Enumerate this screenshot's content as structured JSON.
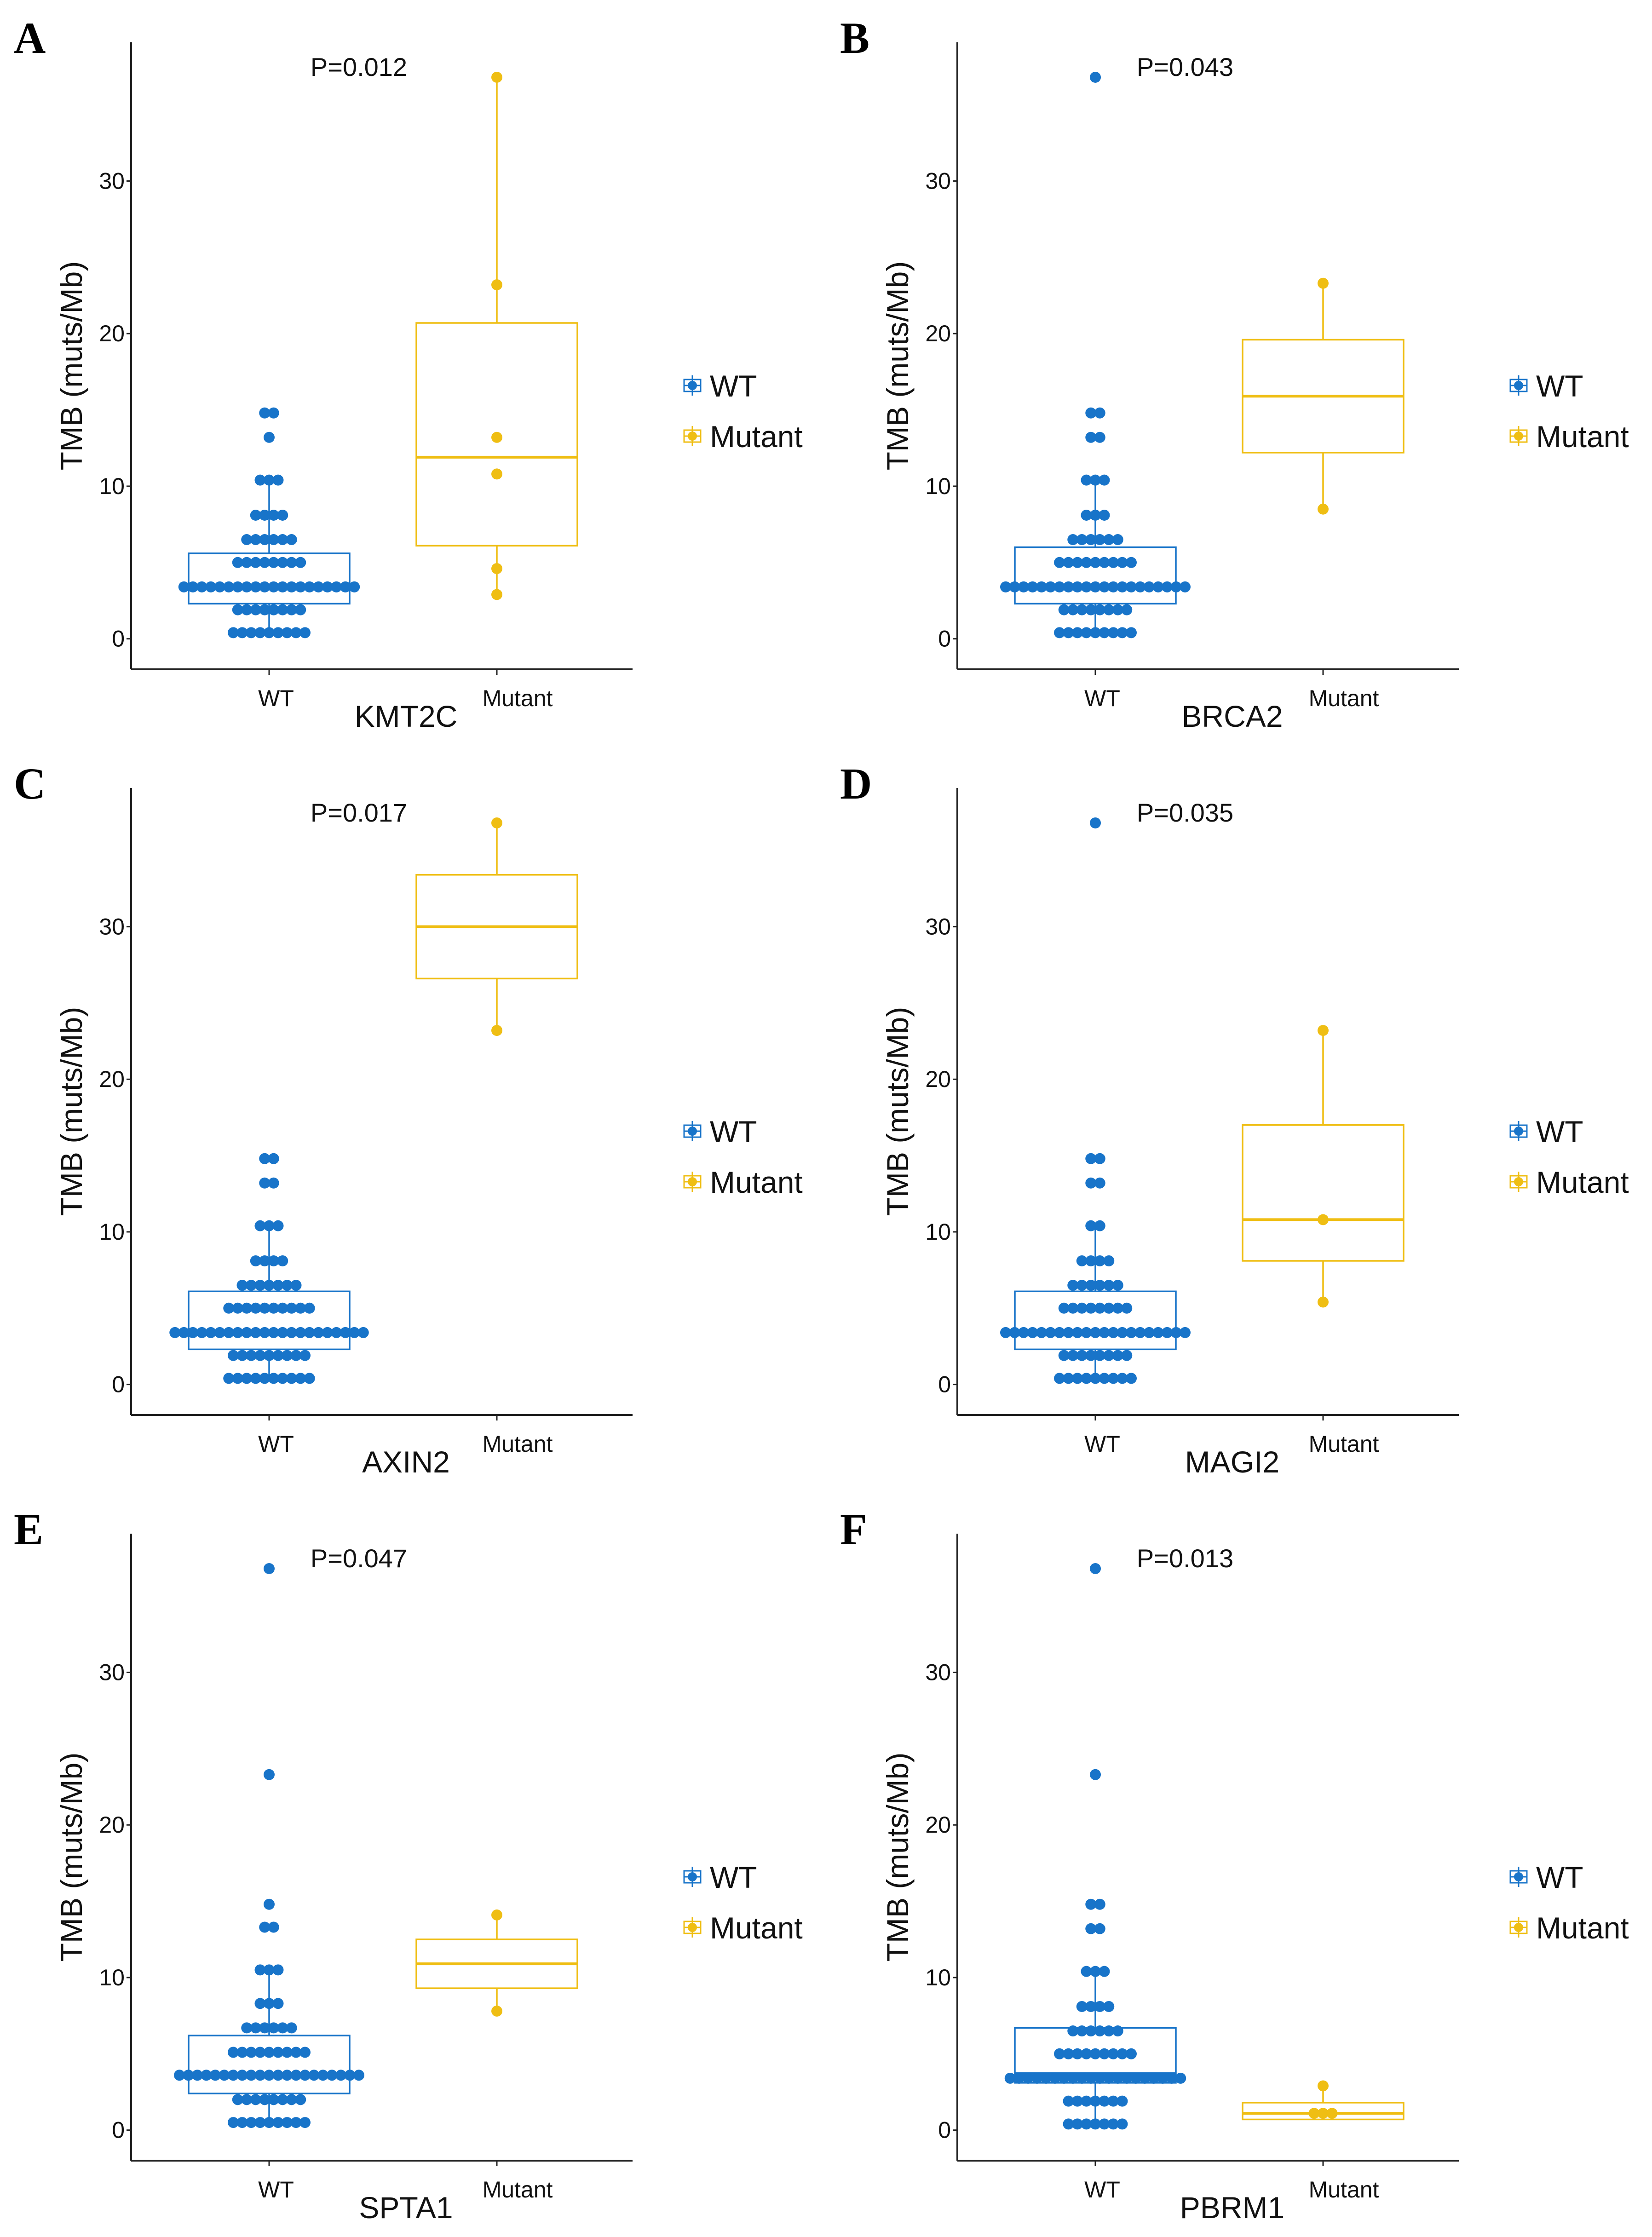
{
  "figure": {
    "colors": {
      "WT": "#1874c9",
      "Mutant": "#efbe13",
      "axis": "#222222",
      "text": "#111111"
    }
  },
  "chart_data": [
    {
      "panel": "A",
      "type": "boxplot+dotplot",
      "title": "",
      "pvalue": "P=0.012",
      "xlabel": "KMT2C",
      "ylabel": "TMB (muts/Mb)",
      "categories": [
        "WT",
        "Mutant"
      ],
      "yticks": [
        0,
        10,
        20,
        30
      ],
      "ylim": [
        -2,
        39
      ],
      "legend": {
        "entries": [
          "WT",
          "Mutant"
        ],
        "position": "right"
      },
      "groups": [
        {
          "name": "WT",
          "box": {
            "q1": 2.3,
            "median": 3.4,
            "q3": 5.6,
            "whisker_low": 0.4,
            "whisker_high": 10.4
          },
          "dots": [
            {
              "y": 0.4,
              "n": 9
            },
            {
              "y": 1.9,
              "n": 8
            },
            {
              "y": 3.4,
              "n": 20
            },
            {
              "y": 5.0,
              "n": 8
            },
            {
              "y": 6.5,
              "n": 6
            },
            {
              "y": 8.1,
              "n": 4
            },
            {
              "y": 10.4,
              "n": 3
            },
            {
              "y": 13.2,
              "n": 1
            },
            {
              "y": 14.8,
              "n": 2
            }
          ]
        },
        {
          "name": "Mutant",
          "box": {
            "q1": 6.1,
            "median": 11.9,
            "q3": 20.7,
            "whisker_low": 2.9,
            "whisker_high": 36.8
          },
          "dots": [
            {
              "y": 36.8,
              "n": 1
            },
            {
              "y": 23.2,
              "n": 1
            },
            {
              "y": 13.2,
              "n": 1
            },
            {
              "y": 10.8,
              "n": 1
            },
            {
              "y": 4.6,
              "n": 1
            },
            {
              "y": 2.9,
              "n": 1
            }
          ]
        }
      ]
    },
    {
      "panel": "B",
      "type": "boxplot+dotplot",
      "title": "",
      "pvalue": "P=0.043",
      "xlabel": "BRCA2",
      "ylabel": "TMB (muts/Mb)",
      "categories": [
        "WT",
        "Mutant"
      ],
      "yticks": [
        0,
        10,
        20,
        30
      ],
      "ylim": [
        -2,
        39
      ],
      "legend": {
        "entries": [
          "WT",
          "Mutant"
        ],
        "position": "right"
      },
      "groups": [
        {
          "name": "WT",
          "box": {
            "q1": 2.3,
            "median": 3.4,
            "q3": 6.0,
            "whisker_low": 0.4,
            "whisker_high": 10.4
          },
          "dots": [
            {
              "y": 0.4,
              "n": 9
            },
            {
              "y": 1.9,
              "n": 8
            },
            {
              "y": 3.4,
              "n": 21
            },
            {
              "y": 5.0,
              "n": 9
            },
            {
              "y": 6.5,
              "n": 6
            },
            {
              "y": 8.1,
              "n": 3
            },
            {
              "y": 10.4,
              "n": 3
            },
            {
              "y": 13.2,
              "n": 2
            },
            {
              "y": 14.8,
              "n": 2
            },
            {
              "y": 36.8,
              "n": 1
            }
          ]
        },
        {
          "name": "Mutant",
          "box": {
            "q1": 12.2,
            "median": 15.9,
            "q3": 19.6,
            "whisker_low": 8.5,
            "whisker_high": 23.3
          },
          "dots": [
            {
              "y": 23.3,
              "n": 1
            },
            {
              "y": 8.5,
              "n": 1
            }
          ]
        }
      ]
    },
    {
      "panel": "C",
      "type": "boxplot+dotplot",
      "title": "",
      "pvalue": "P=0.017",
      "xlabel": "AXIN2",
      "ylabel": "TMB (muts/Mb)",
      "categories": [
        "WT",
        "Mutant"
      ],
      "yticks": [
        0,
        10,
        20,
        30
      ],
      "ylim": [
        -2,
        39
      ],
      "legend": {
        "entries": [
          "WT",
          "Mutant"
        ],
        "position": "right"
      },
      "groups": [
        {
          "name": "WT",
          "box": {
            "q1": 2.3,
            "median": 3.4,
            "q3": 6.1,
            "whisker_low": 0.4,
            "whisker_high": 10.4
          },
          "dots": [
            {
              "y": 0.4,
              "n": 10
            },
            {
              "y": 1.9,
              "n": 9
            },
            {
              "y": 3.4,
              "n": 22
            },
            {
              "y": 5.0,
              "n": 10
            },
            {
              "y": 6.5,
              "n": 7
            },
            {
              "y": 8.1,
              "n": 4
            },
            {
              "y": 10.4,
              "n": 3
            },
            {
              "y": 13.2,
              "n": 2
            },
            {
              "y": 14.8,
              "n": 2
            }
          ]
        },
        {
          "name": "Mutant",
          "box": {
            "q1": 26.6,
            "median": 30.0,
            "q3": 33.4,
            "whisker_low": 23.2,
            "whisker_high": 36.8
          },
          "dots": [
            {
              "y": 36.8,
              "n": 1
            },
            {
              "y": 23.2,
              "n": 1
            }
          ]
        }
      ]
    },
    {
      "panel": "D",
      "type": "boxplot+dotplot",
      "title": "",
      "pvalue": "P=0.035",
      "xlabel": "MAGI2",
      "ylabel": "TMB (muts/Mb)",
      "categories": [
        "WT",
        "Mutant"
      ],
      "yticks": [
        0,
        10,
        20,
        30
      ],
      "ylim": [
        -2,
        39
      ],
      "legend": {
        "entries": [
          "WT",
          "Mutant"
        ],
        "position": "right"
      },
      "groups": [
        {
          "name": "WT",
          "box": {
            "q1": 2.3,
            "median": 3.4,
            "q3": 6.1,
            "whisker_low": 0.4,
            "whisker_high": 10.4
          },
          "dots": [
            {
              "y": 0.4,
              "n": 9
            },
            {
              "y": 1.9,
              "n": 8
            },
            {
              "y": 3.4,
              "n": 21
            },
            {
              "y": 5.0,
              "n": 8
            },
            {
              "y": 6.5,
              "n": 6
            },
            {
              "y": 8.1,
              "n": 4
            },
            {
              "y": 10.4,
              "n": 2
            },
            {
              "y": 13.2,
              "n": 2
            },
            {
              "y": 14.8,
              "n": 2
            },
            {
              "y": 36.8,
              "n": 1
            }
          ]
        },
        {
          "name": "Mutant",
          "box": {
            "q1": 8.1,
            "median": 10.8,
            "q3": 17.0,
            "whisker_low": 5.4,
            "whisker_high": 23.2
          },
          "dots": [
            {
              "y": 23.2,
              "n": 1
            },
            {
              "y": 10.8,
              "n": 1
            },
            {
              "y": 5.4,
              "n": 1
            }
          ]
        }
      ]
    },
    {
      "panel": "E",
      "type": "boxplot+dotplot",
      "title": "",
      "pvalue": "P=0.047",
      "xlabel": "SPTA1",
      "ylabel": "TMB (muts/Mb)",
      "categories": [
        "WT",
        "Mutant"
      ],
      "yticks": [
        0,
        10,
        20,
        30
      ],
      "ylim": [
        -2,
        39
      ],
      "legend": {
        "entries": [
          "WT",
          "Mutant"
        ],
        "position": "right"
      },
      "groups": [
        {
          "name": "WT",
          "box": {
            "q1": 2.4,
            "median": 3.6,
            "q3": 6.2,
            "whisker_low": 0.5,
            "whisker_high": 10.5
          },
          "dots": [
            {
              "y": 0.5,
              "n": 9
            },
            {
              "y": 2.0,
              "n": 8
            },
            {
              "y": 3.6,
              "n": 21
            },
            {
              "y": 5.1,
              "n": 9
            },
            {
              "y": 6.7,
              "n": 6
            },
            {
              "y": 8.3,
              "n": 3
            },
            {
              "y": 10.5,
              "n": 3
            },
            {
              "y": 13.3,
              "n": 2
            },
            {
              "y": 14.8,
              "n": 1
            },
            {
              "y": 23.3,
              "n": 1
            },
            {
              "y": 36.8,
              "n": 1
            }
          ]
        },
        {
          "name": "Mutant",
          "box": {
            "q1": 9.3,
            "median": 10.9,
            "q3": 12.5,
            "whisker_low": 7.8,
            "whisker_high": 14.1
          },
          "dots": [
            {
              "y": 14.1,
              "n": 1
            },
            {
              "y": 7.8,
              "n": 1
            }
          ]
        }
      ]
    },
    {
      "panel": "F",
      "type": "boxplot+dotplot",
      "title": "",
      "pvalue": "P=0.013",
      "xlabel": "PBRM1",
      "ylabel": "TMB (muts/Mb)",
      "categories": [
        "WT",
        "Mutant"
      ],
      "yticks": [
        0,
        10,
        20,
        30
      ],
      "ylim": [
        -2,
        39
      ],
      "legend": {
        "entries": [
          "WT",
          "Mutant"
        ],
        "position": "right"
      },
      "groups": [
        {
          "name": "WT",
          "box": {
            "q1": 3.1,
            "median": 3.7,
            "q3": 6.7,
            "whisker_low": 0.4,
            "whisker_high": 10.4
          },
          "dots": [
            {
              "y": 0.4,
              "n": 7
            },
            {
              "y": 1.9,
              "n": 7
            },
            {
              "y": 3.4,
              "n": 20
            },
            {
              "y": 5.0,
              "n": 9
            },
            {
              "y": 6.5,
              "n": 6
            },
            {
              "y": 8.1,
              "n": 4
            },
            {
              "y": 10.4,
              "n": 3
            },
            {
              "y": 13.2,
              "n": 2
            },
            {
              "y": 14.8,
              "n": 2
            },
            {
              "y": 23.3,
              "n": 1
            },
            {
              "y": 36.8,
              "n": 1
            }
          ]
        },
        {
          "name": "Mutant",
          "box": {
            "q1": 0.7,
            "median": 1.1,
            "q3": 1.8,
            "whisker_low": 1.1,
            "whisker_high": 2.9
          },
          "dots": [
            {
              "y": 2.9,
              "n": 1
            },
            {
              "y": 1.1,
              "n": 3
            }
          ]
        }
      ]
    }
  ]
}
